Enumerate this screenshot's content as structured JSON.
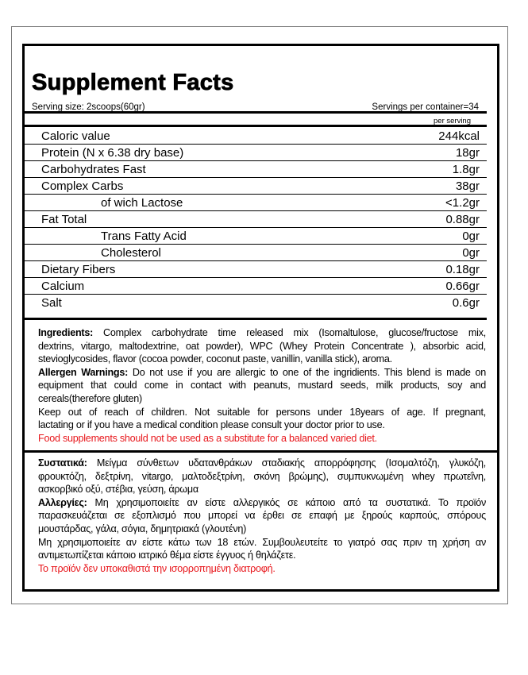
{
  "title": "Supplement Facts",
  "serving_size": "Serving size: 2scoops(60gr)",
  "servings_per_container": "Servings per container=34",
  "per_serving": "per serving",
  "nutrients": [
    {
      "name": "Caloric value",
      "value": "244kcal",
      "indent": false
    },
    {
      "name": "Protein (N x 6.38 dry base)",
      "value": "18gr",
      "indent": false
    },
    {
      "name": "Carbohydrates Fast",
      "value": "1.8gr",
      "indent": false
    },
    {
      "name": "Complex Carbs",
      "value": "38gr",
      "indent": false
    },
    {
      "name": "of wich Lactose",
      "value": "<1.2gr",
      "indent": true
    },
    {
      "name": "Fat Total",
      "value": "0.88gr",
      "indent": false
    },
    {
      "name": "Trans Fatty Acid",
      "value": "0gr",
      "indent": true
    },
    {
      "name": "Cholesterol",
      "value": "0gr",
      "indent": true
    },
    {
      "name": "Dietary Fibers",
      "value": "0.18gr",
      "indent": false
    },
    {
      "name": "Calcium",
      "value": "0.66gr",
      "indent": false
    },
    {
      "name": "Salt",
      "value": "0.6gr",
      "indent": false
    }
  ],
  "english": {
    "ingredients_label": "Ingredients:",
    "ingredients_lines": [
      " Complex carbohydrate time released mix (Isomaltulose, glucose/fructose mix,",
      "dextrins, vitargo, maltodextrine, oat powder), WPC (Whey Protein Concentrate ), absorbic acid,",
      "stevioglycosides, flavor (cocoa powder, coconut paste, vanillin, vanilla stick), aroma."
    ],
    "allergen_label": "Allergen Warnings:",
    "allergen_lines": [
      " Do not use if you are allergic to one of the ingridients. This blend is made on",
      "equipment that could come in contact with peanuts, mustard seeds, milk products, soy and",
      "cereals(therefore gluten)"
    ],
    "warning_lines": [
      "Keep out of reach of children. Not suitable for persons under 18years of age. If pregnant,",
      "lactating or if you have a medical condition please consult your doctor prior to use."
    ],
    "red_notice": "Food supplements should not be used as a substitute for a balanced varied diet."
  },
  "greek": {
    "ingredients_label": "Συστατικά:",
    "ingredients_lines": [
      " Μείγμα σύνθετων υδατανθράκων σταδιακής απορρόφησης (Ισομαλτόζη, γλυκόζη,",
      "φρουκτόζη, δεξτρίνη, vitargo, μαλτοδεξτρίνη, σκόνη βρώμης), συμπυκνωμένη whey πρωτεΐνη,",
      "ασκορβικό οξύ, στέβια,  γεύση, άρωμα"
    ],
    "allergen_label": "Αλλεργίες:",
    "allergen_lines": [
      " Μη χρησιμοποιείτε αν είστε αλλεργικός σε κάποιο από τα συστατικά. Το προϊόν",
      "παρασκευάζεται σε εξοπλισμό   που μπορεί να έρθει σε επαφή με ξηρούς καρπούς, σπόρους",
      "μουστάρδας, γάλα, σόγια, δημητριακά (γλουτένη)"
    ],
    "warning_lines": [
      "Μη χρησιμοποιείτε αν είστε κάτω των 18 ετών. Συμβουλευτείτε το γιατρό σας πριν τη χρήση αν",
      "αντιμετωπίζεται κάποιο ιατρικό θέμα είστε έγγυος ή θηλάζετε."
    ],
    "red_notice": "Το προϊόν δεν υποκαθιστά την ισορροπημένη διατροφή."
  },
  "colors": {
    "warning_red": "#e8161b",
    "border": "#000000"
  }
}
